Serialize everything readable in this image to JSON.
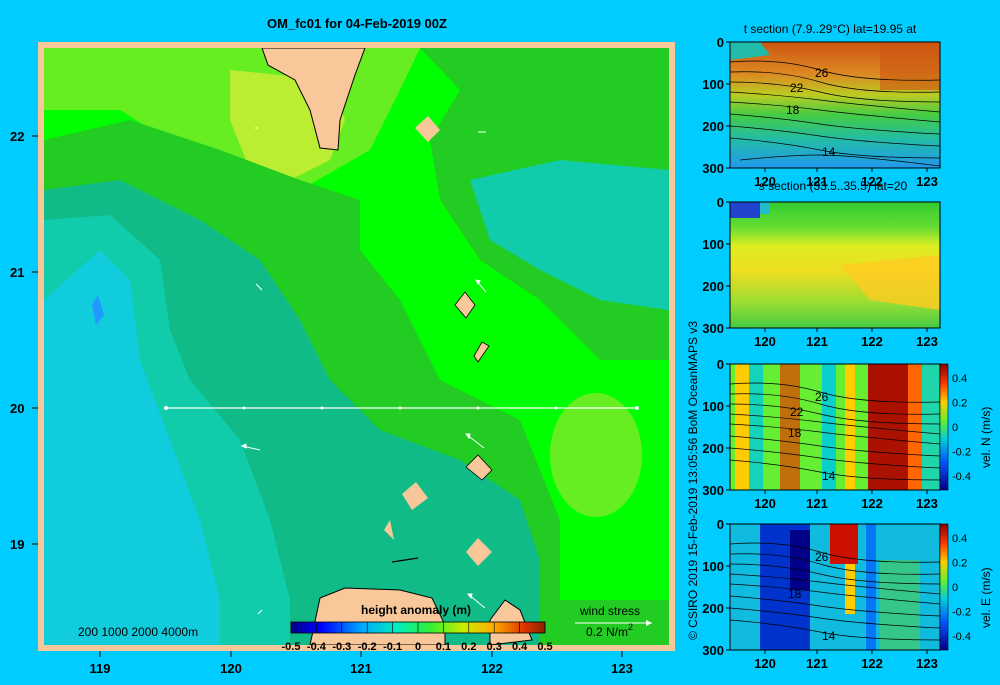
{
  "title": "OM_fc01 for 04-Feb-2019 00Z",
  "credit": "© CSIRO 2019  15-Feb-2019 13:05:56 BoM OceanMAPS v3",
  "map": {
    "x_ticks": [
      "119",
      "120",
      "121",
      "122",
      "123"
    ],
    "y_ticks": [
      "22",
      "21",
      "20",
      "19"
    ],
    "depth_legend": "200  1000  2000  4000m",
    "colorbar_title": "height anomaly (m)",
    "colorbar_ticks": [
      "-0.5",
      "-0.4",
      "-0.3",
      "-0.2",
      "-0.1",
      "0",
      "0.1",
      "0.2",
      "0.3",
      "0.4",
      "0.5"
    ],
    "wind_label": "wind stress",
    "wind_scale": "0.2 N/m",
    "wind_scale_sup": "2",
    "colors": {
      "land": "#f8c89a",
      "outer": "#00ff00",
      "lightgreen": "#66ee22",
      "green": "#22cc22",
      "teal": "#11bb88",
      "turquoise": "#11ccaa",
      "cyan": "#11ccdd",
      "yellowgreen": "#bbee33",
      "blue": "#2299ff"
    }
  },
  "panels": [
    {
      "title": "t section (7.9..29°C) lat=19.95 at",
      "y_ticks": [
        "0",
        "100",
        "200",
        "300"
      ],
      "x_ticks": [
        "120",
        "121",
        "122",
        "123"
      ],
      "contour_labels": [
        "26",
        "22",
        "18",
        "14"
      ]
    },
    {
      "title": "s section (33.5..35.5) lat=20",
      "y_ticks": [
        "0",
        "100",
        "200",
        "300"
      ],
      "x_ticks": [
        "120",
        "121",
        "122",
        "123"
      ]
    },
    {
      "title": "",
      "y_ticks": [
        "0",
        "100",
        "200",
        "300"
      ],
      "x_ticks": [
        "120",
        "121",
        "122",
        "123"
      ],
      "contour_labels": [
        "26",
        "22",
        "18",
        "14"
      ],
      "cbar_ticks": [
        "0.4",
        "0.2",
        "0",
        "-0.2",
        "-0.4"
      ],
      "cbar_label": "vel. N (m/s)"
    },
    {
      "title": "",
      "y_ticks": [
        "0",
        "100",
        "200",
        "300"
      ],
      "x_ticks": [
        "120",
        "121",
        "122",
        "123"
      ],
      "contour_labels": [
        "26",
        "18",
        "14"
      ],
      "cbar_ticks": [
        "0.4",
        "0.2",
        "0",
        "-0.2",
        "-0.4"
      ],
      "cbar_label": "vel. E (m/s)"
    }
  ]
}
